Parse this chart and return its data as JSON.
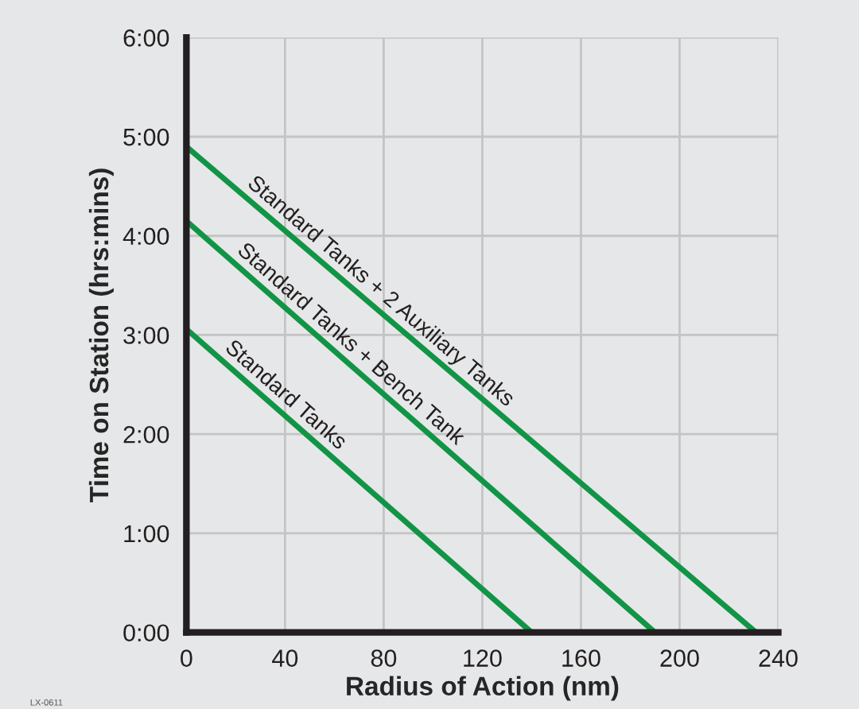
{
  "chart_data": {
    "type": "line",
    "xlabel": "Radius of Action (nm)",
    "ylabel": "Time on Station (hrs:mins)",
    "xlim": [
      0,
      240
    ],
    "xticks": [
      0,
      40,
      80,
      120,
      160,
      200,
      240
    ],
    "ylim": [
      0,
      6
    ],
    "yticks": [
      {
        "value": 0,
        "label": "0:00"
      },
      {
        "value": 1,
        "label": "1:00"
      },
      {
        "value": 2,
        "label": "2:00"
      },
      {
        "value": 3,
        "label": "3:00"
      },
      {
        "value": 4,
        "label": "4:00"
      },
      {
        "value": 5,
        "label": "5:00"
      },
      {
        "value": 6,
        "label": "6:00"
      }
    ],
    "grid": true,
    "legend": false,
    "marker": "none",
    "line_style": "solid",
    "series": [
      {
        "name": "Standard Tanks + 2 Auxiliary Tanks",
        "color": "#129447",
        "x": [
          0,
          231
        ],
        "values": [
          4.9,
          0
        ]
      },
      {
        "name": "Standard Tanks + Bench Tank",
        "color": "#129447",
        "x": [
          0,
          190
        ],
        "values": [
          4.15,
          0
        ]
      },
      {
        "name": "Standard Tanks",
        "color": "#129447",
        "x": [
          0,
          140
        ],
        "values": [
          3.06,
          0
        ]
      }
    ],
    "annotations": [
      "LX-0611"
    ]
  }
}
